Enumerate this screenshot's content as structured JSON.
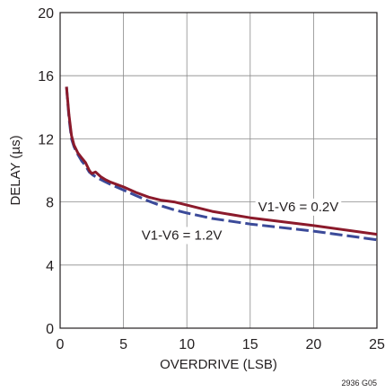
{
  "chart_data": {
    "type": "line",
    "title": "",
    "xlabel": "OVERDRIVE (LSB)",
    "ylabel": "DELAY (µs)",
    "xlim": [
      0,
      25
    ],
    "ylim": [
      0,
      20
    ],
    "xticks": [
      0,
      5,
      10,
      15,
      20,
      25
    ],
    "yticks": [
      0,
      4,
      8,
      12,
      16,
      20
    ],
    "grid": true,
    "series": [
      {
        "name": "V1-V6 = 0.2V",
        "color": "#8b1a2b",
        "style": "solid",
        "x": [
          0.5,
          0.7,
          0.9,
          1.1,
          1.4,
          1.7,
          2.0,
          2.3,
          2.5,
          2.8,
          3.2,
          3.6,
          4.0,
          5.0,
          6.0,
          7.0,
          8.0,
          9.0,
          10.0,
          12.0,
          15.0,
          20.0,
          25.0
        ],
        "y": [
          15.3,
          13.5,
          12.2,
          11.6,
          11.1,
          10.8,
          10.5,
          10.0,
          9.8,
          9.9,
          9.6,
          9.4,
          9.25,
          8.95,
          8.6,
          8.3,
          8.1,
          8.0,
          7.8,
          7.4,
          7.0,
          6.5,
          5.95
        ]
      },
      {
        "name": "V1-V6 = 1.2V",
        "color": "#3b4a99",
        "style": "dashed",
        "x": [
          0.5,
          0.7,
          0.9,
          1.1,
          1.4,
          1.7,
          2.0,
          2.3,
          2.6,
          3.0,
          3.5,
          4.0,
          5.0,
          6.0,
          7.0,
          8.0,
          9.0,
          10.0,
          12.0,
          15.0,
          20.0,
          25.0
        ],
        "y": [
          15.3,
          13.3,
          12.0,
          11.5,
          11.0,
          10.6,
          10.3,
          9.9,
          9.7,
          9.5,
          9.3,
          9.1,
          8.75,
          8.4,
          8.05,
          7.75,
          7.5,
          7.3,
          6.95,
          6.6,
          6.15,
          5.6
        ]
      }
    ],
    "annotations": [
      {
        "text": "V1-V6 = 0.2V",
        "x": 18.8,
        "y": 7.7,
        "series": 0
      },
      {
        "text": "V1-V6 = 1.2V",
        "x": 9.6,
        "y": 5.9,
        "series": 1
      }
    ],
    "figure_id": "2936 G05"
  }
}
